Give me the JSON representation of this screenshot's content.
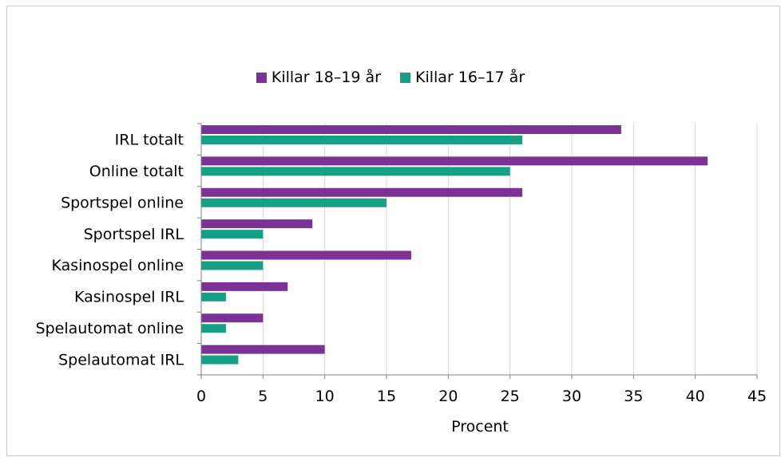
{
  "chart_data": {
    "type": "bar",
    "orientation": "horizontal",
    "categories": [
      "IRL totalt",
      "Online totalt",
      "Sportspel online",
      "Sportspel IRL",
      "Kasinospel online",
      "Kasinospel IRL",
      "Spelautomat online",
      "Spelautomat IRL"
    ],
    "series": [
      {
        "name": "Killar 18–19 år",
        "color": "#7b3294",
        "values": [
          34,
          41,
          26,
          9,
          17,
          7,
          5,
          10
        ]
      },
      {
        "name": "Killar 16–17 år",
        "color": "#16a085",
        "values": [
          26,
          25,
          15,
          5,
          5,
          2,
          2,
          3
        ]
      }
    ],
    "title": "",
    "xlabel": "Procent",
    "ylabel": "",
    "xlim": [
      0,
      45
    ],
    "xticks": [
      0,
      5,
      10,
      15,
      20,
      25,
      30,
      35,
      40,
      45
    ],
    "grid": "vertical",
    "legend_position": "top"
  }
}
